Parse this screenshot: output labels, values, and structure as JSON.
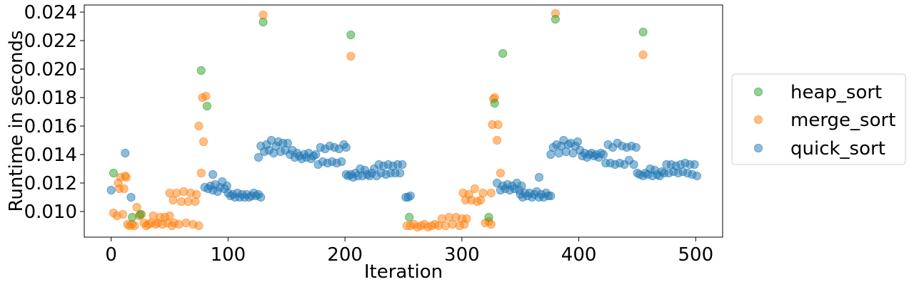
{
  "chart_data": {
    "type": "scatter",
    "xlabel": "Iteration",
    "ylabel": "Runtime in seconds",
    "xlim": [
      -23,
      523
    ],
    "ylim": [
      0.0082,
      0.0245
    ],
    "xticks": [
      0,
      100,
      200,
      300,
      400,
      500
    ],
    "xtick_labels": [
      "0",
      "100",
      "200",
      "300",
      "400",
      "500"
    ],
    "yticks": [
      0.01,
      0.012,
      0.014,
      0.016,
      0.018,
      0.02,
      0.022,
      0.024
    ],
    "ytick_labels": [
      "0.010",
      "0.012",
      "0.014",
      "0.016",
      "0.018",
      "0.020",
      "0.022",
      "0.024"
    ],
    "grid": false,
    "legend_position": "right, outside plot",
    "legend_order": [
      "heap_sort",
      "merge_sort",
      "quick_sort"
    ],
    "series": [
      {
        "name": "heap_sort",
        "color": "#2ca02c",
        "points": [
          [
            2,
            0.0127
          ],
          [
            18,
            0.0096
          ],
          [
            25,
            0.0098
          ],
          [
            77,
            0.0199
          ],
          [
            82,
            0.0174
          ],
          [
            130,
            0.0233
          ],
          [
            205,
            0.0224
          ],
          [
            255,
            0.0096
          ],
          [
            323,
            0.0096
          ],
          [
            328,
            0.0176
          ],
          [
            335,
            0.0211
          ],
          [
            380,
            0.0235
          ],
          [
            455,
            0.0226
          ]
        ]
      },
      {
        "name": "merge_sort",
        "color": "#ff7f0e",
        "points": [
          [
            2,
            0.0099
          ],
          [
            5,
            0.0097
          ],
          [
            6,
            0.012
          ],
          [
            7,
            0.0116
          ],
          [
            8,
            0.0124
          ],
          [
            10,
            0.0098
          ],
          [
            11,
            0.0116
          ],
          [
            12,
            0.0125
          ],
          [
            13,
            0.0124
          ],
          [
            14,
            0.0091
          ],
          [
            16,
            0.009
          ],
          [
            18,
            0.0091
          ],
          [
            20,
            0.009
          ],
          [
            22,
            0.0103
          ],
          [
            24,
            0.0097
          ],
          [
            26,
            0.0098
          ],
          [
            28,
            0.0092
          ],
          [
            30,
            0.009
          ],
          [
            32,
            0.0091
          ],
          [
            34,
            0.0092
          ],
          [
            36,
            0.0097
          ],
          [
            38,
            0.0091
          ],
          [
            40,
            0.0092
          ],
          [
            42,
            0.0096
          ],
          [
            44,
            0.0091
          ],
          [
            46,
            0.0096
          ],
          [
            48,
            0.0092
          ],
          [
            50,
            0.0097
          ],
          [
            52,
            0.009
          ],
          [
            54,
            0.0092
          ],
          [
            50,
            0.0113
          ],
          [
            53,
            0.0108
          ],
          [
            56,
            0.0113
          ],
          [
            58,
            0.0091
          ],
          [
            60,
            0.0107
          ],
          [
            62,
            0.0114
          ],
          [
            64,
            0.0092
          ],
          [
            66,
            0.0107
          ],
          [
            68,
            0.0113
          ],
          [
            70,
            0.0091
          ],
          [
            72,
            0.0107
          ],
          [
            73,
            0.0112
          ],
          [
            75,
            0.009
          ],
          [
            75,
            0.016
          ],
          [
            77,
            0.0127
          ],
          [
            78,
            0.018
          ],
          [
            79,
            0.0149
          ],
          [
            81,
            0.0181
          ],
          [
            130,
            0.0238
          ],
          [
            205,
            0.0209
          ],
          [
            253,
            0.009
          ],
          [
            256,
            0.009
          ],
          [
            259,
            0.0091
          ],
          [
            262,
            0.0089
          ],
          [
            265,
            0.009
          ],
          [
            268,
            0.0091
          ],
          [
            271,
            0.0089
          ],
          [
            274,
            0.009
          ],
          [
            277,
            0.0091
          ],
          [
            280,
            0.009
          ],
          [
            283,
            0.0095
          ],
          [
            286,
            0.009
          ],
          [
            289,
            0.0096
          ],
          [
            292,
            0.0091
          ],
          [
            295,
            0.0096
          ],
          [
            298,
            0.009
          ],
          [
            300,
            0.0095
          ],
          [
            302,
            0.0091
          ],
          [
            304,
            0.0095
          ],
          [
            301,
            0.0113
          ],
          [
            303,
            0.0108
          ],
          [
            306,
            0.0112
          ],
          [
            308,
            0.0108
          ],
          [
            311,
            0.0116
          ],
          [
            313,
            0.0107
          ],
          [
            316,
            0.0108
          ],
          [
            318,
            0.0113
          ],
          [
            320,
            0.0092
          ],
          [
            323,
            0.0093
          ],
          [
            325,
            0.0091
          ],
          [
            325,
            0.0113
          ],
          [
            326,
            0.0161
          ],
          [
            327,
            0.0179
          ],
          [
            328,
            0.018
          ],
          [
            330,
            0.015
          ],
          [
            331,
            0.0161
          ],
          [
            333,
            0.0127
          ],
          [
            380,
            0.0239
          ],
          [
            455,
            0.021
          ]
        ]
      },
      {
        "name": "quick_sort",
        "color": "#1f77b4",
        "points": [
          [
            0,
            0.0115
          ],
          [
            12,
            0.0141
          ],
          [
            17,
            0.011
          ],
          [
            80,
            0.0117
          ],
          [
            83,
            0.0116
          ],
          [
            85,
            0.0118
          ],
          [
            87,
            0.0115
          ],
          [
            89,
            0.0119
          ],
          [
            91,
            0.0114
          ],
          [
            93,
            0.0117
          ],
          [
            95,
            0.0121
          ],
          [
            87,
            0.0126
          ],
          [
            97,
            0.0116
          ],
          [
            99,
            0.0118
          ],
          [
            100,
            0.0113
          ],
          [
            102,
            0.0111
          ],
          [
            104,
            0.0112
          ],
          [
            106,
            0.011
          ],
          [
            108,
            0.0113
          ],
          [
            110,
            0.011
          ],
          [
            112,
            0.0112
          ],
          [
            114,
            0.011
          ],
          [
            116,
            0.0112
          ],
          [
            118,
            0.011
          ],
          [
            120,
            0.0111
          ],
          [
            122,
            0.0113
          ],
          [
            124,
            0.0111
          ],
          [
            126,
            0.0112
          ],
          [
            128,
            0.011
          ],
          [
            126,
            0.0138
          ],
          [
            128,
            0.0146
          ],
          [
            131,
            0.0142
          ],
          [
            133,
            0.0147
          ],
          [
            135,
            0.0143
          ],
          [
            137,
            0.015
          ],
          [
            139,
            0.0141
          ],
          [
            141,
            0.0146
          ],
          [
            143,
            0.0149
          ],
          [
            145,
            0.0142
          ],
          [
            147,
            0.0148
          ],
          [
            149,
            0.0143
          ],
          [
            151,
            0.0148
          ],
          [
            153,
            0.014
          ],
          [
            155,
            0.0143
          ],
          [
            157,
            0.0138
          ],
          [
            159,
            0.0141
          ],
          [
            161,
            0.0139
          ],
          [
            163,
            0.0137
          ],
          [
            165,
            0.014
          ],
          [
            167,
            0.0138
          ],
          [
            169,
            0.0141
          ],
          [
            171,
            0.0137
          ],
          [
            173,
            0.0139
          ],
          [
            175,
            0.014
          ],
          [
            177,
            0.0133
          ],
          [
            179,
            0.0145
          ],
          [
            181,
            0.0135
          ],
          [
            183,
            0.0144
          ],
          [
            185,
            0.0134
          ],
          [
            187,
            0.0146
          ],
          [
            189,
            0.0135
          ],
          [
            191,
            0.0145
          ],
          [
            193,
            0.0134
          ],
          [
            195,
            0.0144
          ],
          [
            197,
            0.0135
          ],
          [
            199,
            0.0147
          ],
          [
            201,
            0.0145
          ],
          [
            201,
            0.0126
          ],
          [
            203,
            0.0125
          ],
          [
            205,
            0.0126
          ],
          [
            207,
            0.0124
          ],
          [
            209,
            0.0127
          ],
          [
            211,
            0.0125
          ],
          [
            213,
            0.013
          ],
          [
            215,
            0.0125
          ],
          [
            217,
            0.0129
          ],
          [
            219,
            0.0126
          ],
          [
            221,
            0.0125
          ],
          [
            223,
            0.0127
          ],
          [
            225,
            0.013
          ],
          [
            227,
            0.0125
          ],
          [
            229,
            0.0133
          ],
          [
            231,
            0.0127
          ],
          [
            233,
            0.0132
          ],
          [
            235,
            0.0126
          ],
          [
            237,
            0.0133
          ],
          [
            239,
            0.0127
          ],
          [
            241,
            0.0132
          ],
          [
            243,
            0.0127
          ],
          [
            245,
            0.0133
          ],
          [
            247,
            0.0127
          ],
          [
            249,
            0.0133
          ],
          [
            252,
            0.011
          ],
          [
            254,
            0.011
          ],
          [
            256,
            0.0111
          ],
          [
            330,
            0.012
          ],
          [
            333,
            0.0115
          ],
          [
            335,
            0.0118
          ],
          [
            337,
            0.0116
          ],
          [
            339,
            0.0119
          ],
          [
            341,
            0.0115
          ],
          [
            343,
            0.0118
          ],
          [
            345,
            0.0116
          ],
          [
            347,
            0.012
          ],
          [
            349,
            0.0115
          ],
          [
            351,
            0.0118
          ],
          [
            350,
            0.0112
          ],
          [
            352,
            0.011
          ],
          [
            354,
            0.0113
          ],
          [
            356,
            0.0111
          ],
          [
            358,
            0.0113
          ],
          [
            360,
            0.011
          ],
          [
            362,
            0.0112
          ],
          [
            364,
            0.0114
          ],
          [
            366,
            0.011
          ],
          [
            368,
            0.0112
          ],
          [
            370,
            0.011
          ],
          [
            372,
            0.0113
          ],
          [
            374,
            0.0111
          ],
          [
            376,
            0.0111
          ],
          [
            366,
            0.0124
          ],
          [
            376,
            0.014
          ],
          [
            378,
            0.0145
          ],
          [
            381,
            0.0147
          ],
          [
            383,
            0.0141
          ],
          [
            385,
            0.0146
          ],
          [
            387,
            0.015
          ],
          [
            389,
            0.0142
          ],
          [
            391,
            0.0147
          ],
          [
            393,
            0.0148
          ],
          [
            395,
            0.0141
          ],
          [
            397,
            0.0146
          ],
          [
            399,
            0.0149
          ],
          [
            401,
            0.0143
          ],
          [
            403,
            0.0139
          ],
          [
            405,
            0.0141
          ],
          [
            407,
            0.0138
          ],
          [
            409,
            0.014
          ],
          [
            411,
            0.0141
          ],
          [
            413,
            0.0139
          ],
          [
            415,
            0.014
          ],
          [
            417,
            0.0138
          ],
          [
            419,
            0.0141
          ],
          [
            421,
            0.014
          ],
          [
            423,
            0.0134
          ],
          [
            425,
            0.0147
          ],
          [
            427,
            0.0134
          ],
          [
            429,
            0.0145
          ],
          [
            431,
            0.0133
          ],
          [
            433,
            0.0148
          ],
          [
            435,
            0.0134
          ],
          [
            437,
            0.0146
          ],
          [
            439,
            0.0133
          ],
          [
            441,
            0.0145
          ],
          [
            443,
            0.0136
          ],
          [
            445,
            0.0146
          ],
          [
            447,
            0.0133
          ],
          [
            449,
            0.0145
          ],
          [
            450,
            0.0127
          ],
          [
            452,
            0.0126
          ],
          [
            455,
            0.0125
          ],
          [
            457,
            0.0127
          ],
          [
            459,
            0.0126
          ],
          [
            461,
            0.013
          ],
          [
            463,
            0.0125
          ],
          [
            465,
            0.0129
          ],
          [
            467,
            0.0126
          ],
          [
            469,
            0.0125
          ],
          [
            471,
            0.0128
          ],
          [
            473,
            0.0127
          ],
          [
            475,
            0.0133
          ],
          [
            477,
            0.0127
          ],
          [
            479,
            0.0133
          ],
          [
            481,
            0.0128
          ],
          [
            483,
            0.0132
          ],
          [
            485,
            0.0127
          ],
          [
            487,
            0.0133
          ],
          [
            489,
            0.0128
          ],
          [
            491,
            0.0134
          ],
          [
            493,
            0.0127
          ],
          [
            495,
            0.0133
          ],
          [
            497,
            0.0126
          ],
          [
            499,
            0.0133
          ],
          [
            501,
            0.0125
          ]
        ]
      }
    ]
  }
}
